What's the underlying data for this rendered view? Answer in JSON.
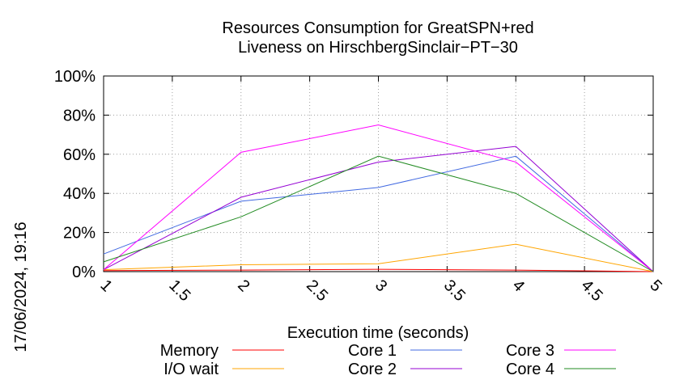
{
  "chart_data": {
    "type": "line",
    "title": "Resources Consumption for GreatSPN+red",
    "subtitle": "Liveness on HirschbergSinclair−PT−30",
    "xlabel": "Execution time (seconds)",
    "ylabel": "",
    "timestamp": "17/06/2024, 19:16",
    "xlim": [
      1,
      5
    ],
    "ylim": [
      0,
      100
    ],
    "x_ticks": [
      1,
      1.5,
      2,
      2.5,
      3,
      3.5,
      4,
      4.5,
      5
    ],
    "x_tick_labels": [
      "1",
      "1.5",
      "2",
      "2.5",
      "3",
      "3.5",
      "4",
      "4.5",
      "5"
    ],
    "y_ticks": [
      0,
      20,
      40,
      60,
      80,
      100
    ],
    "y_tick_labels": [
      "0%",
      "20%",
      "40%",
      "60%",
      "80%",
      "100%"
    ],
    "grid": true,
    "legend_position": "bottom",
    "x": [
      1,
      2,
      3,
      4,
      5
    ],
    "series": [
      {
        "name": "Memory",
        "color": "#ff0000",
        "values": [
          0.5,
          0.8,
          1.2,
          0.8,
          0
        ]
      },
      {
        "name": "I/O wait",
        "color": "#ffa500",
        "values": [
          1,
          3.5,
          4,
          14,
          0
        ]
      },
      {
        "name": "Core 1",
        "color": "#4169e1",
        "values": [
          9,
          36,
          43,
          59,
          0
        ]
      },
      {
        "name": "Core 2",
        "color": "#9400d3",
        "values": [
          1,
          38,
          56,
          64,
          0
        ]
      },
      {
        "name": "Core 3",
        "color": "#ff00ff",
        "values": [
          1,
          61,
          75,
          56,
          0
        ]
      },
      {
        "name": "Core 4",
        "color": "#228b22",
        "values": [
          5,
          28,
          59,
          40,
          0
        ]
      }
    ]
  }
}
